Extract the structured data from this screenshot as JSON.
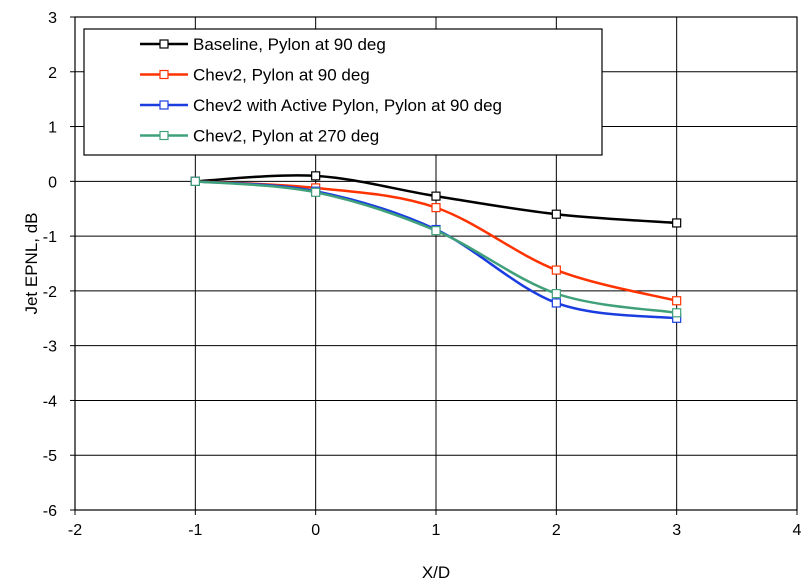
{
  "chart_data": {
    "type": "line",
    "title": "",
    "xlabel": "X/D",
    "ylabel": "Jet EPNL, dB",
    "xlim": [
      -2,
      4
    ],
    "ylim": [
      -6,
      3
    ],
    "xticks": [
      -2,
      -1,
      0,
      1,
      2,
      3,
      4
    ],
    "yticks": [
      -6,
      -5,
      -4,
      -3,
      -2,
      -1,
      0,
      1,
      2,
      3
    ],
    "grid": true,
    "legend_position": "top-left",
    "series": [
      {
        "name": "Baseline, Pylon at 90 deg",
        "color": "#000000",
        "x": [
          -1,
          0,
          1,
          2,
          3
        ],
        "y": [
          0.0,
          0.1,
          -0.27,
          -0.6,
          -0.76
        ]
      },
      {
        "name": "Chev2, Pylon at 90 deg",
        "color": "#ff3300",
        "x": [
          -1,
          0,
          1,
          2,
          3
        ],
        "y": [
          0.0,
          -0.12,
          -0.48,
          -1.62,
          -2.18
        ]
      },
      {
        "name": "Chev2 with Active Pylon, Pylon at 90 deg",
        "color": "#1a3de0",
        "x": [
          -1,
          0,
          1,
          2,
          3
        ],
        "y": [
          0.0,
          -0.18,
          -0.88,
          -2.22,
          -2.5
        ]
      },
      {
        "name": "Chev2, Pylon at 270 deg",
        "color": "#3fa07a",
        "x": [
          -1,
          0,
          1,
          2,
          3
        ],
        "y": [
          0.0,
          -0.2,
          -0.9,
          -2.05,
          -2.4
        ]
      }
    ]
  }
}
